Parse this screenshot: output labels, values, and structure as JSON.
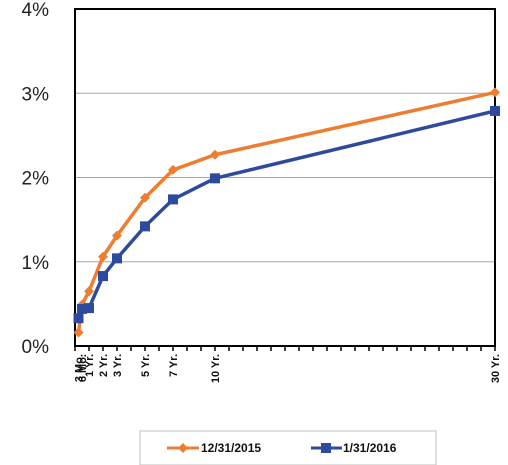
{
  "chart_data": {
    "type": "line",
    "x_unit": "years to maturity",
    "categories": [
      "3 Mo.",
      "6 Mo.",
      "1 Yr.",
      "2 Yr.",
      "3 Yr.",
      "5 Yr.",
      "7 Yr.",
      "10 Yr.",
      "30 Yr."
    ],
    "x": [
      0.25,
      0.5,
      1,
      2,
      3,
      5,
      7,
      10,
      30
    ],
    "xlim": [
      0,
      30
    ],
    "ylim": [
      0,
      4
    ],
    "y_ticks": [
      "0%",
      "1%",
      "2%",
      "3%",
      "4%"
    ],
    "grid": "horizontal",
    "legend_position": "bottom",
    "series": [
      {
        "name": "12/31/2015",
        "color": "#ED7D31",
        "marker": "diamond",
        "values": [
          0.16,
          0.49,
          0.65,
          1.06,
          1.31,
          1.76,
          2.09,
          2.27,
          3.01
        ]
      },
      {
        "name": "1/31/2016",
        "color": "#2E4A9E",
        "marker": "square",
        "values": [
          0.33,
          0.44,
          0.45,
          0.83,
          1.04,
          1.42,
          1.74,
          1.99,
          2.79
        ]
      }
    ]
  }
}
